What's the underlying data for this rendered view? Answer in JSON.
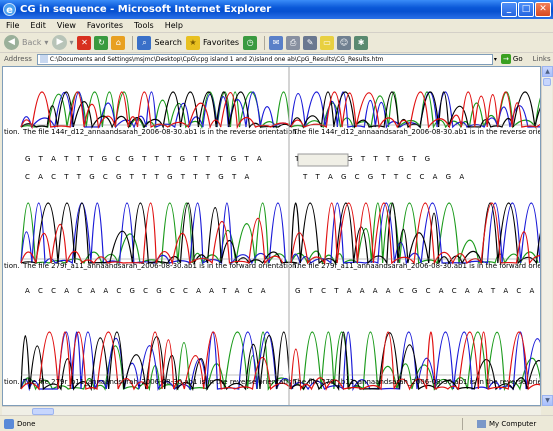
{
  "window": {
    "title": "CG in sequence - Microsoft Internet Explorer"
  },
  "menu": [
    "File",
    "Edit",
    "View",
    "Favorites",
    "Tools",
    "Help"
  ],
  "toolbar": {
    "back": "Back",
    "search": "Search",
    "favorites": "Favorites"
  },
  "address": {
    "label": "Address",
    "url": "C:\\Documents and Settings\\msjmc\\Desktop\\CpG\\cpg island 1 and 2\\island one ab\\CpG_Results\\CG_Results.htm",
    "go": "Go",
    "links": "Links"
  },
  "panels": [
    {
      "caption": "The file 144r_d12_annaandsarah_2006-08-30.ab1 is in the reverse orientation.",
      "prefix": "tion.",
      "bases": ""
    },
    {
      "caption": "The file 144r_d12_annaandsarah_2006-08-30.ab1 is in the reverse orienta",
      "prefix": "",
      "bases": ""
    },
    {
      "caption": "The file 279f_a11_annaandsarah_2006-08-30.ab1 is in the forward orientation.",
      "prefix": "tion.",
      "bases": "G T A T T T G C G T T T G T T T G T A"
    },
    {
      "caption": "The file 279f_a11_annaandsarah_2006-08-30.ab1 is in the forward orientat",
      "prefix": "",
      "bases": "T A G C G T T T G T G"
    },
    {
      "caption": "The file 279r_b11_annaandsarah_2006-08-30.ab1 is in the reverse orientation.",
      "prefix": "tion.",
      "bases": "A C C A C A A C G C G C C A A T A C A"
    },
    {
      "caption": "The file 279r_b11_annaandsarah_2006-08-30.ab1 is in the reverse orienta",
      "prefix": "",
      "bases": "G T C T A A A A C G C A C A A T A C A"
    }
  ],
  "panel2_bases_line2": "C A C T T G C G T T T G T T T G T A",
  "panel3_bases_line2": "T T A G C G T T C C A G A",
  "status": {
    "left": "Done",
    "zone": "My Computer"
  },
  "colors": {
    "A": "#1a9a1a",
    "C": "#1a1ad8",
    "G": "#000000",
    "T": "#e01010",
    "title": "#0a58d8"
  }
}
